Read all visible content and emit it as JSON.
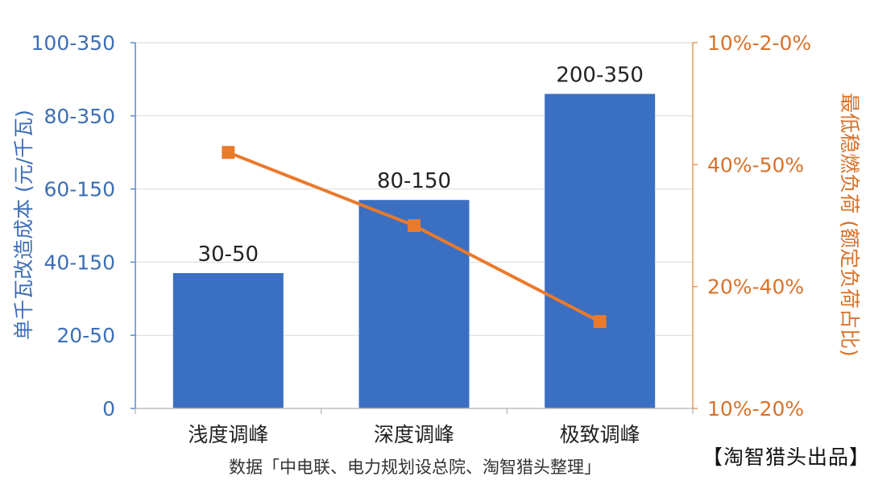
{
  "chart_data": {
    "type": "bar",
    "categories": [
      "浅度调峰",
      "深度调峰",
      "极致调峰"
    ],
    "series": [
      {
        "type": "bar",
        "values": [
          37,
          57,
          86
        ],
        "labels": [
          "30-50",
          "80-150",
          "200-350"
        ],
        "color": "#3b6fc2"
      },
      {
        "type": "line",
        "values": [
          0.28,
          0.2,
          0.095
        ],
        "color": "#ea7a2c"
      }
    ],
    "y_left": {
      "label": "单千瓦改造成本 (元/千瓦)",
      "ticks": [
        "0",
        "20-50",
        "40-150",
        "60-150",
        "80-350",
        "100-350"
      ],
      "color": "#3d6fb6"
    },
    "y_right": {
      "label": "最低稳燃负荷 (额定负荷占比)",
      "ticks": [
        "10%-20%",
        "20%-40%",
        "40%-50%",
        "10%-2-0%"
      ],
      "color": "#d8722b"
    },
    "grid": true
  },
  "footer": {
    "source": "数据「中电联、电力规划设总院、淘智猎头整理」",
    "brand": "【淘智猎头出品】"
  }
}
